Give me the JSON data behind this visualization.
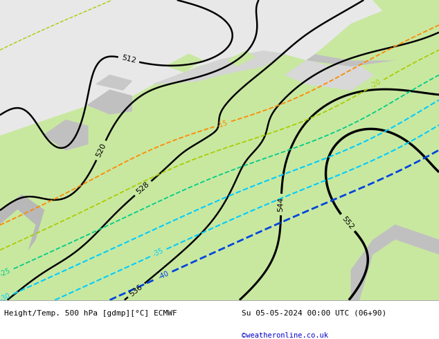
{
  "title_left": "Height/Temp. 500 hPa [gdmp][°C] ECMWF",
  "title_right": "Su 05-05-2024 00:00 UTC (06+90)",
  "credit": "©weatheronline.co.uk",
  "background_color": "#ffffff",
  "land_color": "#c8e8a0",
  "sea_color": "#e8e8e8",
  "coast_color": "#a0a0a0",
  "contour_color": "#000000",
  "temp_cyan": "#00ccff",
  "temp_blue": "#0044dd",
  "temp_green": "#88cc00",
  "temp_orange": "#ff8800",
  "footer_bg": "#ffffff",
  "credit_color": "#0000cc"
}
